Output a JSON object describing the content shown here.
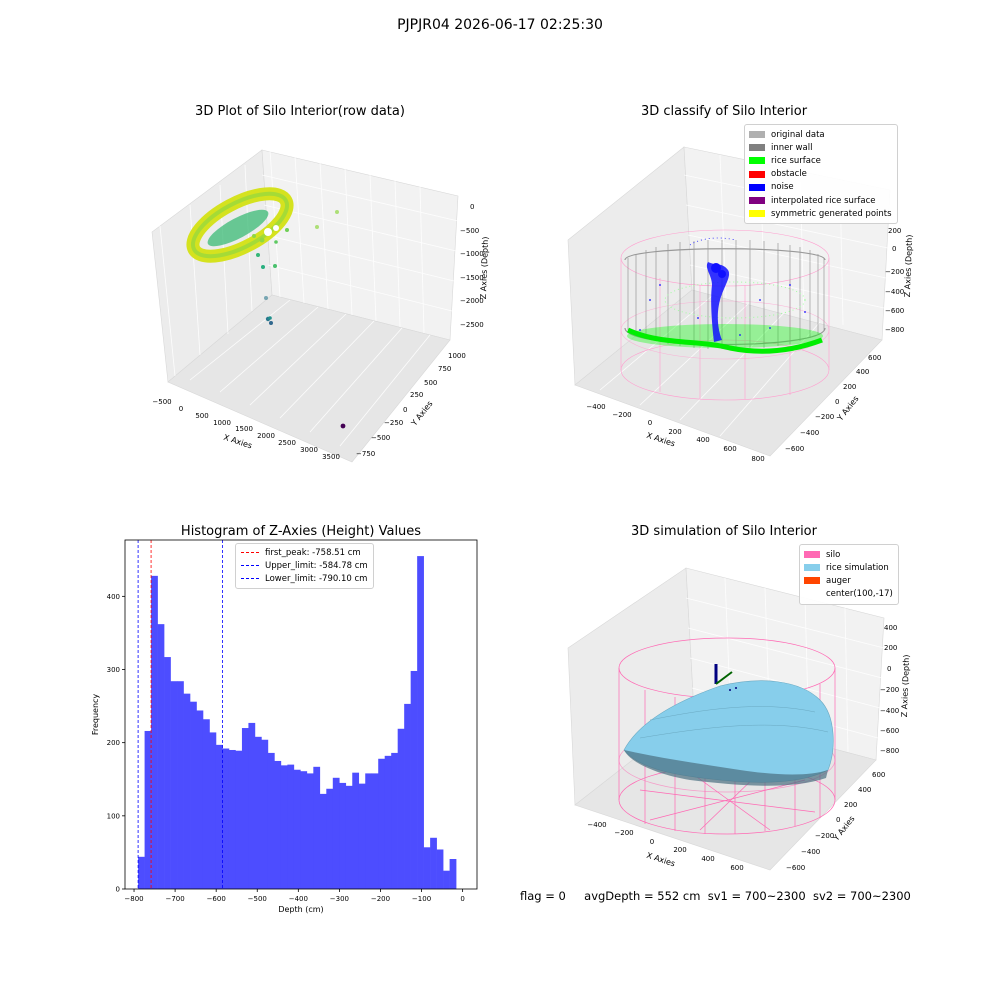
{
  "suptitle": "PJPJR04 2026-06-17 02:25:30",
  "panel_3d_raw": {
    "title": "3D Plot of Silo Interior(row data)",
    "xlabel": "X Axies",
    "ylabel": "Y Axies",
    "zlabel": "Z Axies (Depth)",
    "xticks": [
      "−500",
      "0",
      "500",
      "1000",
      "1500",
      "2000",
      "2500",
      "3000",
      "3500"
    ],
    "yticks": [
      "−750",
      "−500",
      "−250",
      "0",
      "250",
      "500",
      "750",
      "1000"
    ],
    "zticks": [
      "−2500",
      "−2000",
      "−1500",
      "−1000",
      "−500",
      "0"
    ]
  },
  "panel_3d_classify": {
    "title": "3D classify of Silo Interior",
    "xlabel": "X Axies",
    "ylabel": "Y Axies",
    "zlabel": "Z Axies (Depth)",
    "xticks": [
      "−400",
      "−200",
      "0",
      "200",
      "400",
      "600",
      "800"
    ],
    "yticks": [
      "−600",
      "−400",
      "−200",
      "0",
      "200",
      "400",
      "600"
    ],
    "zticks": [
      "−800",
      "−600",
      "−400",
      "−200",
      "0",
      "200"
    ],
    "legend": [
      {
        "label": "original data",
        "color": "#b0b0b0"
      },
      {
        "label": "inner wall",
        "color": "#808080"
      },
      {
        "label": "rice surface",
        "color": "#00ff00"
      },
      {
        "label": "obstacle",
        "color": "#ff0000"
      },
      {
        "label": "noise",
        "color": "#0000ff"
      },
      {
        "label": "interpolated rice surface",
        "color": "#800080"
      },
      {
        "label": "symmetric generated points",
        "color": "#ffff00"
      }
    ]
  },
  "panel_3d_sim": {
    "title": "3D simulation of Silo Interior",
    "xlabel": "X Axies",
    "ylabel": "Y Axies",
    "zlabel": "Z Axies (Depth)",
    "xticks": [
      "−400",
      "−200",
      "0",
      "200",
      "400",
      "600"
    ],
    "yticks": [
      "−600",
      "−400",
      "−200",
      "0",
      "200",
      "400",
      "600"
    ],
    "zticks": [
      "−800",
      "−600",
      "−400",
      "−200",
      "0",
      "200",
      "400"
    ],
    "legend": [
      {
        "label": "silo",
        "color": "#ff69b4"
      },
      {
        "label": "rice simulation",
        "color": "#87ceeb"
      },
      {
        "label": "auger",
        "color": "#ff4500"
      },
      {
        "label": "center(100,-17)",
        "color": ""
      }
    ]
  },
  "footer": {
    "flag": "flag = 0",
    "avg": "avgDepth = 552 cm",
    "sv1": "sv1 = 700~2300",
    "sv2": "sv2 = 700~2300"
  },
  "chart_data": [
    {
      "type": "bar",
      "title": "Histogram of Z-Axies (Height) Values",
      "xlabel": "Depth (cm)",
      "ylabel": "Frequency",
      "xlim": [
        -822,
        35
      ],
      "ylim": [
        0,
        477
      ],
      "bar_color": "#4d4dff",
      "bin_start": -790.1,
      "bin_width": 15.8,
      "values": [
        44,
        216,
        428,
        362,
        317,
        284,
        284,
        267,
        256,
        244,
        232,
        214,
        197,
        192,
        190,
        189,
        220,
        227,
        208,
        204,
        186,
        175,
        169,
        170,
        163,
        161,
        158,
        167,
        130,
        137,
        152,
        145,
        141,
        159,
        144,
        158,
        158,
        178,
        182,
        186,
        219,
        253,
        298,
        455,
        57,
        70,
        54,
        25,
        41
      ],
      "xticks": [
        -800,
        -700,
        -600,
        -500,
        -400,
        -300,
        -200,
        -100,
        0
      ],
      "xtick_labels": [
        "−800",
        "−700",
        "−600",
        "−500",
        "−400",
        "−300",
        "−200",
        "−100",
        "0"
      ],
      "yticks": [
        0,
        100,
        200,
        300,
        400
      ],
      "ytick_labels": [
        "0",
        "100",
        "200",
        "300",
        "400"
      ],
      "vlines": [
        {
          "label": "first_peak: -758.51 cm",
          "x": -758.51,
          "color": "#ff0000"
        },
        {
          "label": "Upper_limit: -584.78 cm",
          "x": -584.78,
          "color": "#0000ff"
        },
        {
          "label": "Lower_limit: -790.10 cm",
          "x": -790.1,
          "color": "#0000ff"
        }
      ],
      "legend_position": "upper center"
    }
  ]
}
